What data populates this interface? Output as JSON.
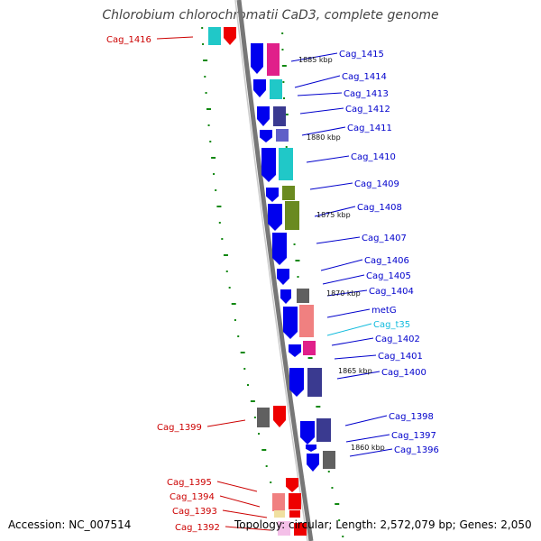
{
  "title": "Chlorobium chlorochromatii CaD3, complete genome",
  "footer": {
    "accession": "Accession: NC_007514",
    "summary": "Topology: circular; Length: 2,572,079 bp; Genes: 2,050"
  },
  "colors": {
    "backbone": "#888888",
    "forward_cds": "#0000ee",
    "reverse_cds": "#ee0000",
    "tick": "#118811",
    "label_forward": "#0000cc",
    "label_reverse": "#cc0000",
    "label_rna": "#11bbdd"
  },
  "scale_labels": [
    "1885 kbp",
    "1880 kbp",
    "1875 kbp",
    "1870 kbp",
    "1865 kbp",
    "1860 kbp"
  ],
  "genes_right": [
    "Cag_1415",
    "Cag_1414",
    "Cag_1413",
    "Cag_1412",
    "Cag_1411",
    "Cag_1410",
    "Cag_1409",
    "Cag_1408",
    "Cag_1407",
    "Cag_1406",
    "Cag_1405",
    "Cag_1404",
    "metG",
    "Cag_t35",
    "Cag_1402",
    "Cag_1401",
    "Cag_1400",
    "Cag_1398",
    "Cag_1397",
    "Cag_1396"
  ],
  "genes_left": [
    "Cag_1416",
    "Cag_1399",
    "Cag_1395",
    "Cag_1394",
    "Cag_1393",
    "Cag_1392"
  ]
}
